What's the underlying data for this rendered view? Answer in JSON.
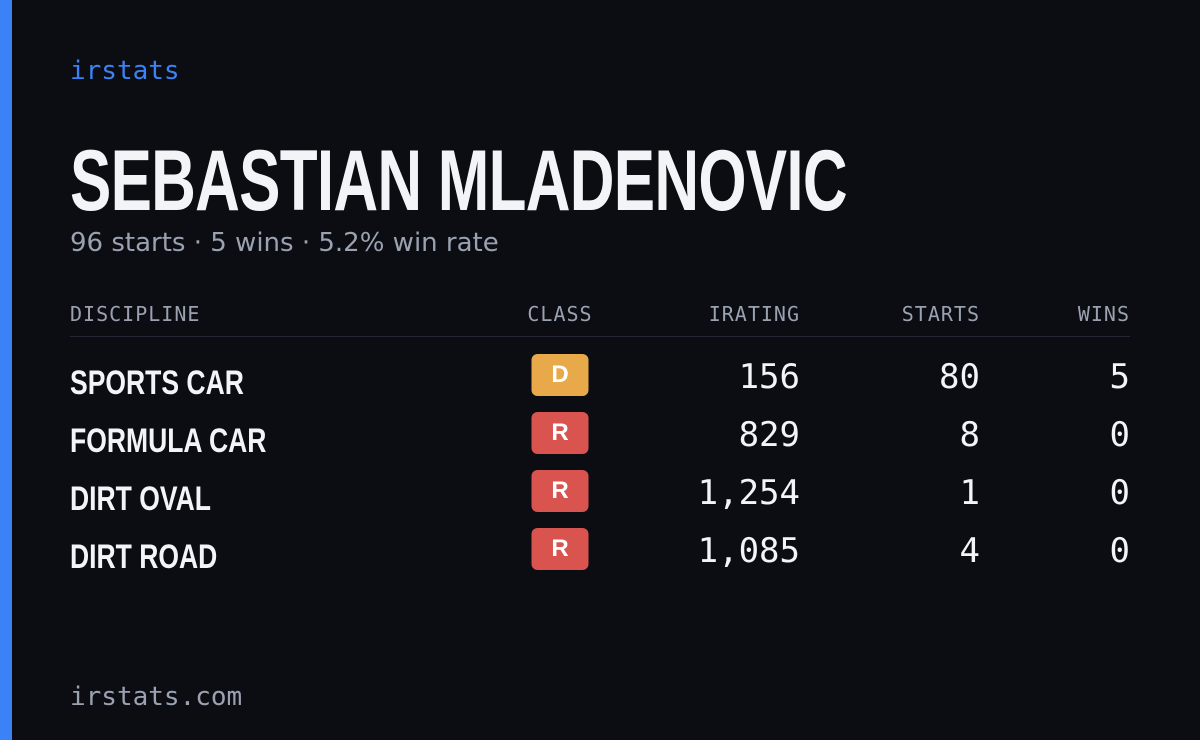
{
  "brand": "irstats",
  "driver": {
    "name": "SEBASTIAN MLADENOVIC",
    "summary": "96 starts · 5 wins · 5.2% win rate"
  },
  "table": {
    "headers": [
      "DISCIPLINE",
      "CLASS",
      "IRATING",
      "STARTS",
      "WINS"
    ],
    "rows": [
      {
        "discipline": "SPORTS CAR",
        "class": "D",
        "class_color": "#e8a94a",
        "irating": "156",
        "starts": "80",
        "wins": "5"
      },
      {
        "discipline": "FORMULA CAR",
        "class": "R",
        "class_color": "#d9534f",
        "irating": "829",
        "starts": "8",
        "wins": "0"
      },
      {
        "discipline": "DIRT OVAL",
        "class": "R",
        "class_color": "#d9534f",
        "irating": "1,254",
        "starts": "1",
        "wins": "0"
      },
      {
        "discipline": "DIRT ROAD",
        "class": "R",
        "class_color": "#d9534f",
        "irating": "1,085",
        "starts": "4",
        "wins": "0"
      }
    ]
  },
  "footer": {
    "url": "irstats.com"
  }
}
